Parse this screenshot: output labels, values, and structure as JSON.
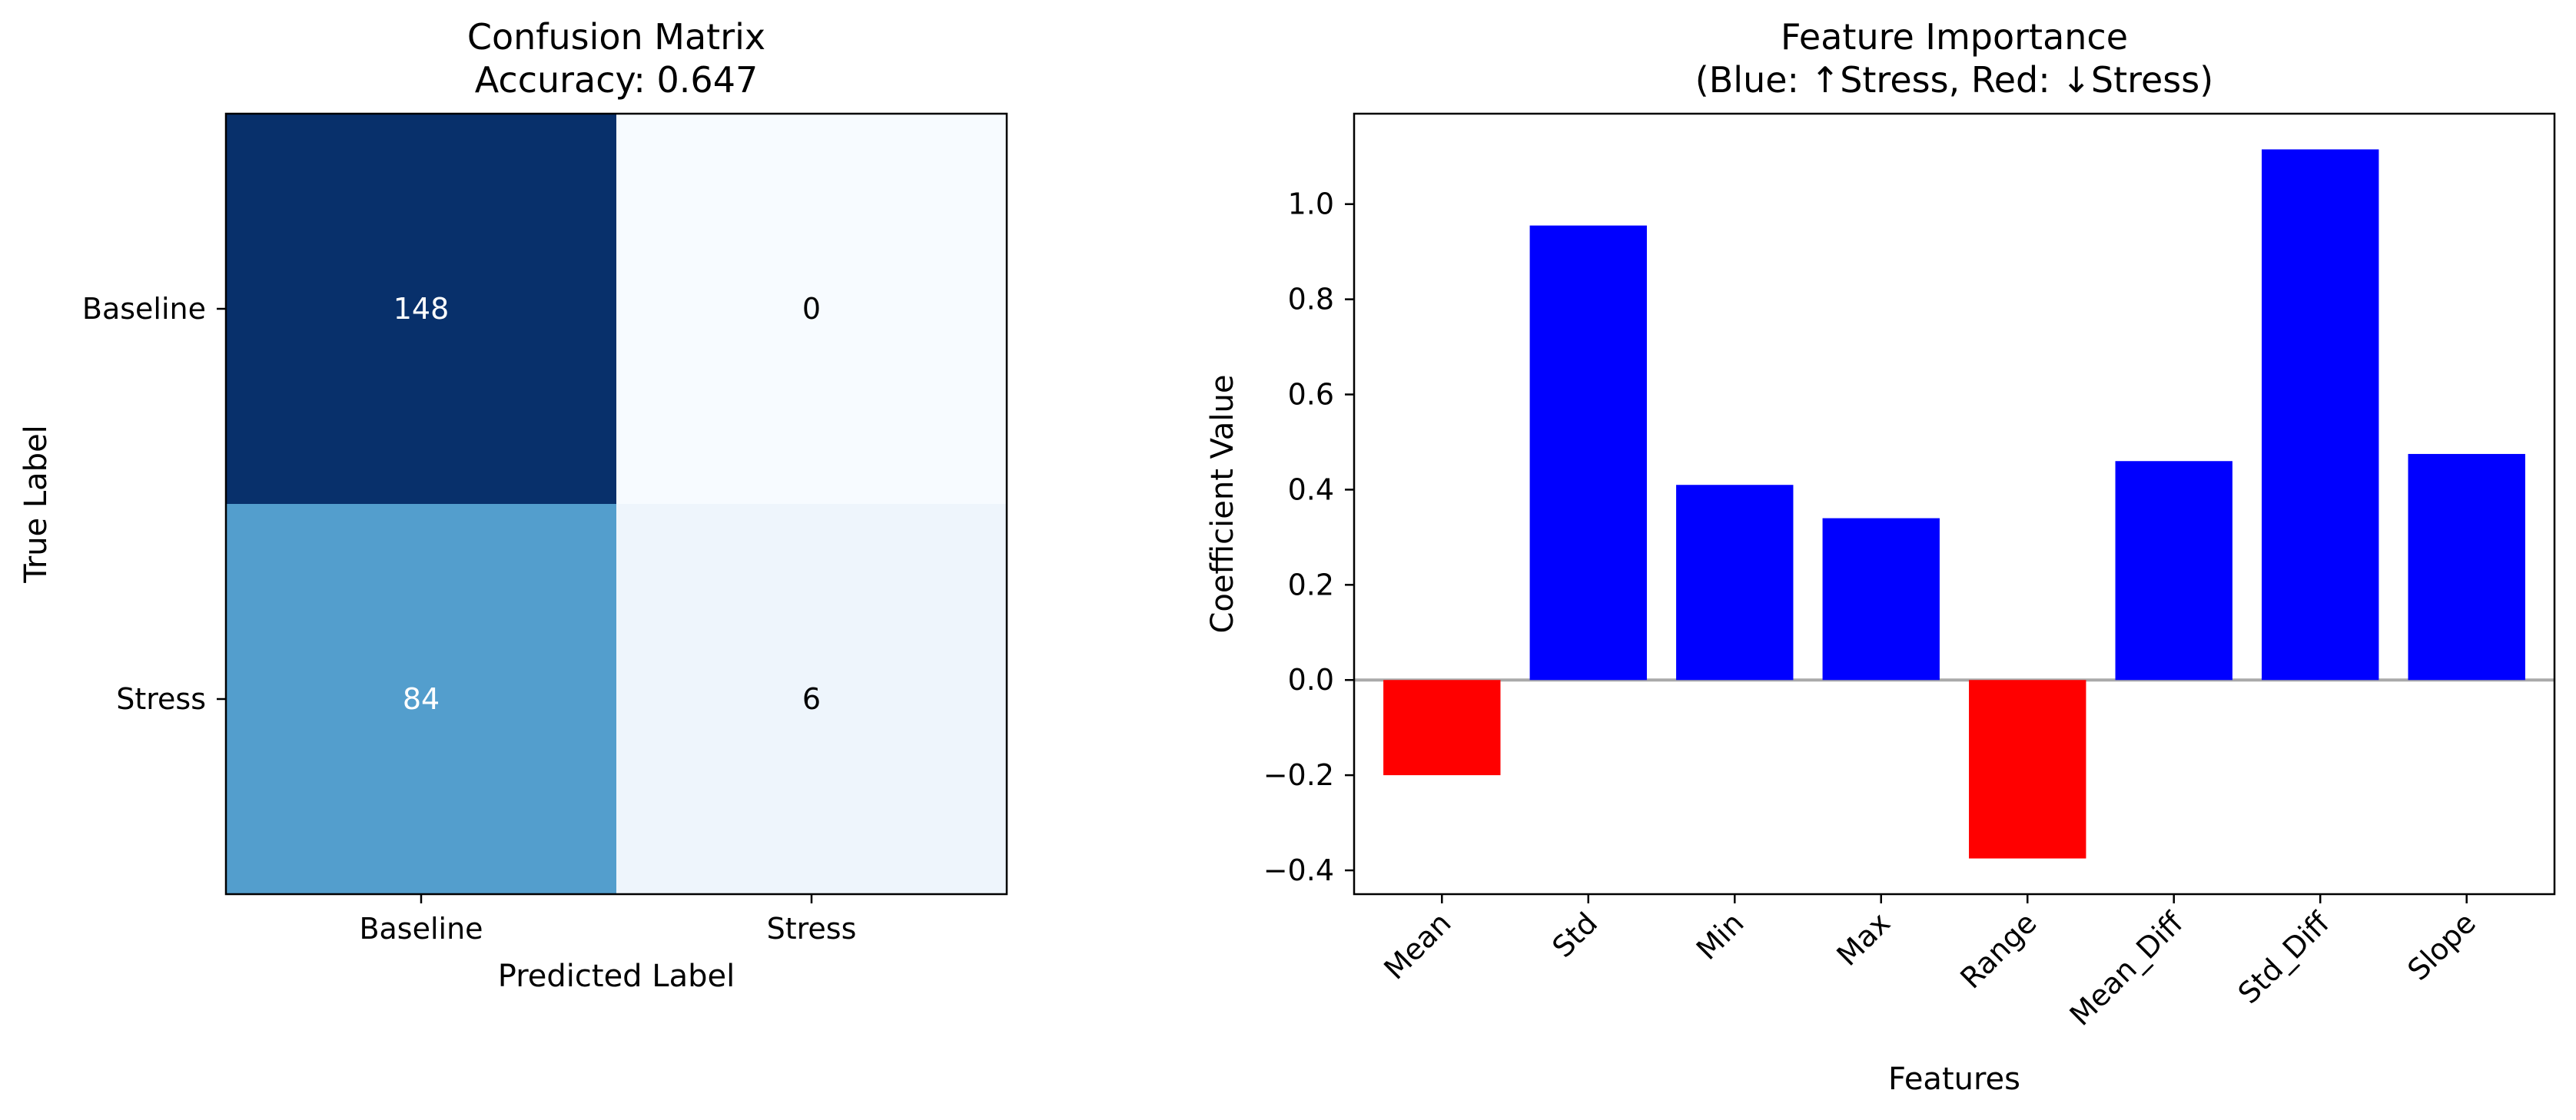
{
  "chart_data": [
    {
      "type": "heatmap",
      "title": "Confusion Matrix",
      "subtitle": "Accuracy: 0.647",
      "xlabel": "Predicted Label",
      "ylabel": "True Label",
      "x_categories": [
        "Baseline",
        "Stress"
      ],
      "y_categories": [
        "Baseline",
        "Stress"
      ],
      "values": [
        [
          148,
          0
        ],
        [
          84,
          6
        ]
      ],
      "colormap": "Blues",
      "cell_colors": [
        [
          "#08306b",
          "#f7fbff"
        ],
        [
          "#539ecd",
          "#eef5fc"
        ]
      ],
      "text_colors": [
        [
          "#ffffff",
          "#000000"
        ],
        [
          "#ffffff",
          "#000000"
        ]
      ]
    },
    {
      "type": "bar",
      "title": "Feature Importance",
      "subtitle": "(Blue: ↑Stress, Red: ↓Stress)",
      "xlabel": "Features",
      "ylabel": "Coefficient Value",
      "categories": [
        "Mean",
        "Std",
        "Min",
        "Max",
        "Range",
        "Mean_Diff",
        "Std_Diff",
        "Slope"
      ],
      "values": [
        -0.2,
        0.955,
        0.41,
        0.34,
        -0.375,
        0.46,
        1.115,
        0.475
      ],
      "ylim": [
        -0.45,
        1.19
      ],
      "yticks": [
        -0.4,
        -0.2,
        0.0,
        0.2,
        0.4,
        0.6,
        0.8,
        1.0
      ],
      "ytick_labels": [
        "−0.4",
        "−0.2",
        "0.0",
        "0.2",
        "0.4",
        "0.6",
        "0.8",
        "1.0"
      ],
      "positive_color": "#0000ff",
      "negative_color": "#ff0000",
      "zero_line_color": "#aaaaaa",
      "grid": false
    }
  ]
}
